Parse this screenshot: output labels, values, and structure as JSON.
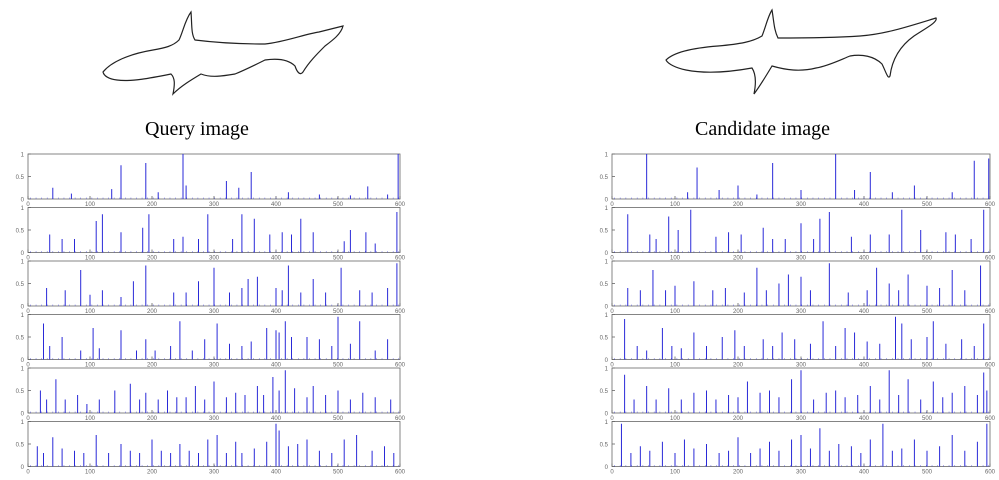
{
  "captions": {
    "query": "Query image",
    "candidate": "Candidate image"
  },
  "colors": {
    "outline": "#222222",
    "spike": "#2a2ad8",
    "axis": "#666666",
    "tick_text": "#666666"
  },
  "chart_data": [
    {
      "type": "bar",
      "title": "",
      "xlabel": "",
      "ylabel": "",
      "grid": false,
      "panel_count": 6,
      "xlim": [
        0,
        600
      ],
      "ylim": [
        0,
        1
      ],
      "ytick_labels": [
        "0",
        "0.5",
        "1"
      ],
      "xtick_labels": [
        "0",
        "100",
        "200",
        "300",
        "400",
        "500",
        "600"
      ],
      "series": [
        {
          "x": [
            40,
            70,
            135,
            150,
            190,
            210,
            250,
            255,
            320,
            340,
            360,
            420,
            470,
            520,
            548,
            580,
            597
          ],
          "values": [
            0.25,
            0.12,
            0.22,
            0.75,
            0.8,
            0.15,
            1.0,
            0.3,
            0.4,
            0.25,
            0.6,
            0.15,
            0.1,
            0.08,
            0.28,
            0.1,
            1.0
          ]
        },
        {
          "x": [
            35,
            55,
            75,
            110,
            120,
            150,
            185,
            195,
            235,
            250,
            275,
            290,
            330,
            345,
            365,
            390,
            410,
            425,
            440,
            460,
            510,
            520,
            545,
            560,
            595
          ],
          "values": [
            0.4,
            0.3,
            0.3,
            0.7,
            0.85,
            0.45,
            0.55,
            0.85,
            0.3,
            0.35,
            0.3,
            0.85,
            0.3,
            0.85,
            0.75,
            0.4,
            0.45,
            0.4,
            0.75,
            0.45,
            0.25,
            0.5,
            0.45,
            0.2,
            0.9
          ]
        },
        {
          "x": [
            30,
            60,
            85,
            100,
            120,
            150,
            170,
            190,
            235,
            255,
            275,
            300,
            325,
            345,
            355,
            370,
            400,
            410,
            420,
            440,
            460,
            480,
            505,
            535,
            555,
            580,
            595
          ],
          "values": [
            0.4,
            0.35,
            0.8,
            0.25,
            0.35,
            0.2,
            0.55,
            0.9,
            0.3,
            0.3,
            0.55,
            0.85,
            0.3,
            0.4,
            0.6,
            0.65,
            0.4,
            0.35,
            0.9,
            0.3,
            0.6,
            0.3,
            0.85,
            0.35,
            0.3,
            0.4,
            0.95
          ]
        },
        {
          "x": [
            25,
            35,
            55,
            85,
            105,
            115,
            150,
            175,
            190,
            205,
            230,
            245,
            265,
            285,
            305,
            325,
            345,
            360,
            385,
            400,
            405,
            415,
            425,
            450,
            470,
            490,
            500,
            520,
            535,
            560,
            580
          ],
          "values": [
            0.8,
            0.3,
            0.5,
            0.2,
            0.7,
            0.25,
            0.65,
            0.2,
            0.45,
            0.2,
            0.3,
            0.85,
            0.2,
            0.45,
            0.8,
            0.35,
            0.3,
            0.4,
            0.7,
            0.65,
            0.6,
            0.85,
            0.5,
            0.5,
            0.45,
            0.3,
            0.95,
            0.35,
            0.85,
            0.2,
            0.45
          ]
        },
        {
          "x": [
            20,
            30,
            45,
            60,
            80,
            95,
            115,
            140,
            165,
            180,
            190,
            210,
            225,
            240,
            255,
            270,
            285,
            300,
            320,
            335,
            350,
            370,
            380,
            395,
            405,
            415,
            430,
            450,
            460,
            480,
            500,
            520,
            540,
            560,
            585
          ],
          "values": [
            0.5,
            0.3,
            0.75,
            0.3,
            0.4,
            0.2,
            0.3,
            0.5,
            0.65,
            0.3,
            0.45,
            0.3,
            0.5,
            0.35,
            0.35,
            0.6,
            0.3,
            0.7,
            0.35,
            0.45,
            0.4,
            0.6,
            0.4,
            0.8,
            0.5,
            0.95,
            0.55,
            0.35,
            0.6,
            0.4,
            0.5,
            0.3,
            0.45,
            0.35,
            0.3
          ]
        },
        {
          "x": [
            15,
            25,
            40,
            55,
            75,
            90,
            110,
            130,
            150,
            165,
            180,
            200,
            215,
            230,
            245,
            260,
            275,
            290,
            305,
            320,
            335,
            345,
            365,
            385,
            400,
            405,
            420,
            435,
            450,
            470,
            490,
            510,
            530,
            555,
            575,
            590
          ],
          "values": [
            0.45,
            0.3,
            0.65,
            0.4,
            0.35,
            0.3,
            0.7,
            0.3,
            0.5,
            0.35,
            0.3,
            0.6,
            0.35,
            0.3,
            0.5,
            0.35,
            0.3,
            0.6,
            0.7,
            0.3,
            0.55,
            0.3,
            0.4,
            0.55,
            0.95,
            0.8,
            0.45,
            0.5,
            0.6,
            0.35,
            0.3,
            0.6,
            0.7,
            0.35,
            0.45,
            0.3
          ]
        }
      ]
    },
    {
      "type": "bar",
      "title": "",
      "xlabel": "",
      "ylabel": "",
      "grid": false,
      "panel_count": 6,
      "xlim": [
        0,
        600
      ],
      "ylim": [
        0,
        1
      ],
      "ytick_labels": [
        "0",
        "0.5",
        "1"
      ],
      "xtick_labels": [
        "0",
        "100",
        "200",
        "300",
        "400",
        "500",
        "600"
      ],
      "series": [
        {
          "x": [
            55,
            120,
            135,
            170,
            200,
            230,
            255,
            300,
            355,
            385,
            410,
            445,
            480,
            540,
            575,
            598
          ],
          "values": [
            1.0,
            0.15,
            0.7,
            0.2,
            0.3,
            0.1,
            0.8,
            0.2,
            1.0,
            0.2,
            0.6,
            0.15,
            0.3,
            0.15,
            0.85,
            0.9
          ]
        },
        {
          "x": [
            25,
            60,
            70,
            90,
            105,
            125,
            165,
            185,
            205,
            240,
            255,
            275,
            300,
            320,
            330,
            345,
            380,
            410,
            440,
            460,
            490,
            530,
            545,
            570,
            590
          ],
          "values": [
            0.85,
            0.4,
            0.3,
            0.8,
            0.5,
            0.95,
            0.35,
            0.45,
            0.4,
            0.55,
            0.3,
            0.3,
            0.65,
            0.3,
            0.75,
            0.9,
            0.35,
            0.4,
            0.4,
            0.95,
            0.5,
            0.45,
            0.4,
            0.3,
            0.95
          ]
        },
        {
          "x": [
            25,
            45,
            65,
            85,
            100,
            130,
            160,
            180,
            210,
            230,
            245,
            265,
            280,
            300,
            315,
            345,
            375,
            405,
            420,
            440,
            455,
            470,
            500,
            520,
            540,
            560,
            585
          ],
          "values": [
            0.4,
            0.35,
            0.8,
            0.35,
            0.45,
            0.55,
            0.35,
            0.4,
            0.3,
            0.85,
            0.35,
            0.5,
            0.7,
            0.65,
            0.35,
            0.95,
            0.3,
            0.35,
            0.85,
            0.5,
            0.35,
            0.7,
            0.45,
            0.4,
            0.8,
            0.35,
            0.9
          ]
        },
        {
          "x": [
            20,
            40,
            55,
            80,
            95,
            110,
            130,
            150,
            175,
            195,
            210,
            240,
            255,
            270,
            290,
            315,
            335,
            355,
            370,
            385,
            405,
            425,
            450,
            460,
            475,
            500,
            510,
            530,
            555,
            575,
            590
          ],
          "values": [
            0.9,
            0.3,
            0.2,
            0.7,
            0.3,
            0.25,
            0.6,
            0.3,
            0.5,
            0.65,
            0.3,
            0.45,
            0.3,
            0.6,
            0.45,
            0.35,
            0.85,
            0.3,
            0.7,
            0.6,
            0.4,
            0.35,
            0.95,
            0.8,
            0.45,
            0.5,
            0.85,
            0.35,
            0.45,
            0.3,
            0.8
          ]
        },
        {
          "x": [
            20,
            35,
            55,
            70,
            90,
            110,
            130,
            150,
            165,
            185,
            200,
            215,
            235,
            250,
            265,
            285,
            300,
            320,
            340,
            355,
            370,
            390,
            410,
            425,
            440,
            455,
            470,
            490,
            510,
            525,
            540,
            560,
            580,
            590,
            595
          ],
          "values": [
            0.85,
            0.3,
            0.6,
            0.3,
            0.55,
            0.3,
            0.45,
            0.5,
            0.3,
            0.4,
            0.35,
            0.7,
            0.45,
            0.5,
            0.35,
            0.75,
            0.95,
            0.3,
            0.45,
            0.5,
            0.35,
            0.4,
            0.6,
            0.3,
            0.95,
            0.4,
            0.75,
            0.3,
            0.7,
            0.35,
            0.45,
            0.6,
            0.4,
            0.9,
            0.5
          ]
        },
        {
          "x": [
            15,
            30,
            45,
            60,
            80,
            100,
            115,
            130,
            150,
            170,
            185,
            200,
            220,
            235,
            250,
            265,
            285,
            300,
            315,
            330,
            345,
            360,
            380,
            395,
            410,
            430,
            445,
            460,
            480,
            500,
            520,
            540,
            560,
            580,
            595
          ],
          "values": [
            0.95,
            0.3,
            0.45,
            0.35,
            0.55,
            0.3,
            0.6,
            0.4,
            0.5,
            0.3,
            0.35,
            0.65,
            0.3,
            0.4,
            0.55,
            0.35,
            0.6,
            0.7,
            0.4,
            0.85,
            0.35,
            0.5,
            0.45,
            0.3,
            0.6,
            0.95,
            0.35,
            0.4,
            0.6,
            0.35,
            0.45,
            0.7,
            0.35,
            0.55,
            0.95
          ]
        }
      ]
    }
  ]
}
